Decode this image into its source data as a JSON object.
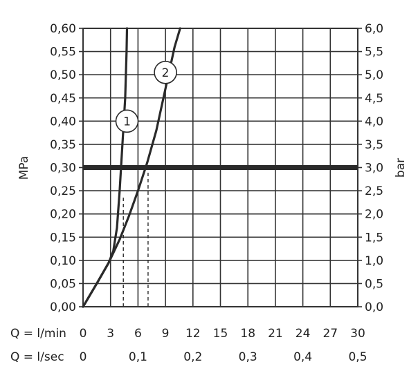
{
  "chart_data": {
    "type": "line",
    "left_axis": {
      "label": "MPa",
      "ylim": [
        0,
        0.6
      ],
      "ticks": [
        "0,00",
        "0,05",
        "0,10",
        "0,15",
        "0,20",
        "0,25",
        "0,30",
        "0,35",
        "0,40",
        "0,45",
        "0,50",
        "0,55",
        "0,60"
      ]
    },
    "right_axis": {
      "label": "bar",
      "ylim": [
        0,
        6
      ],
      "ticks": [
        "0,0",
        "0,5",
        "1,0",
        "1,5",
        "2,0",
        "2,5",
        "3,0",
        "3,5",
        "4,0",
        "4,5",
        "5,0",
        "5,5",
        "6,0"
      ]
    },
    "x_axis": {
      "xlim": [
        0,
        30
      ],
      "row1_label": "Q = l/min",
      "row1_ticks": [
        {
          "value": 0,
          "label": "0"
        },
        {
          "value": 3,
          "label": "3"
        },
        {
          "value": 6,
          "label": "6"
        },
        {
          "value": 9,
          "label": "9"
        },
        {
          "value": 12,
          "label": "12"
        },
        {
          "value": 15,
          "label": "15"
        },
        {
          "value": 18,
          "label": "18"
        },
        {
          "value": 21,
          "label": "21"
        },
        {
          "value": 24,
          "label": "24"
        },
        {
          "value": 27,
          "label": "27"
        },
        {
          "value": 30,
          "label": "30"
        }
      ],
      "row2_label": "Q = l/sec",
      "row2_ticks": [
        {
          "value": 0,
          "label": "0"
        },
        {
          "value": 6,
          "label": "0,1"
        },
        {
          "value": 12,
          "label": "0,2"
        },
        {
          "value": 18,
          "label": "0,3"
        },
        {
          "value": 24,
          "label": "0,4"
        },
        {
          "value": 30,
          "label": "0,5"
        }
      ]
    },
    "grid": true,
    "reference_line": {
      "y": 0.3
    },
    "series": [
      {
        "name": "1",
        "x": [
          0,
          1.5,
          2.8,
          3.3,
          3.7,
          4.0,
          4.3,
          4.6,
          4.75,
          4.8
        ],
        "y": [
          0,
          0.05,
          0.095,
          0.12,
          0.17,
          0.25,
          0.35,
          0.45,
          0.55,
          0.6
        ]
      },
      {
        "name": "2",
        "x": [
          0,
          1.5,
          2.8,
          4.0,
          5.0,
          6.0,
          7.0,
          8.0,
          9.0,
          10.0,
          10.6
        ],
        "y": [
          0,
          0.05,
          0.095,
          0.145,
          0.195,
          0.25,
          0.31,
          0.38,
          0.47,
          0.56,
          0.6
        ]
      }
    ],
    "markers": [
      {
        "label": "1",
        "x": 4.8,
        "y": 0.4
      },
      {
        "label": "2",
        "x": 9.0,
        "y": 0.505
      }
    ],
    "dashed_guides": [
      {
        "x": 4.4,
        "from_y": 0,
        "to_y": 0.235
      },
      {
        "x": 7.1,
        "from_y": 0,
        "to_y": 0.3
      }
    ],
    "colors": {
      "curve": "#2a2a2a",
      "grid": "#333333",
      "text": "#222222",
      "reference": "#2a2a2a"
    }
  }
}
